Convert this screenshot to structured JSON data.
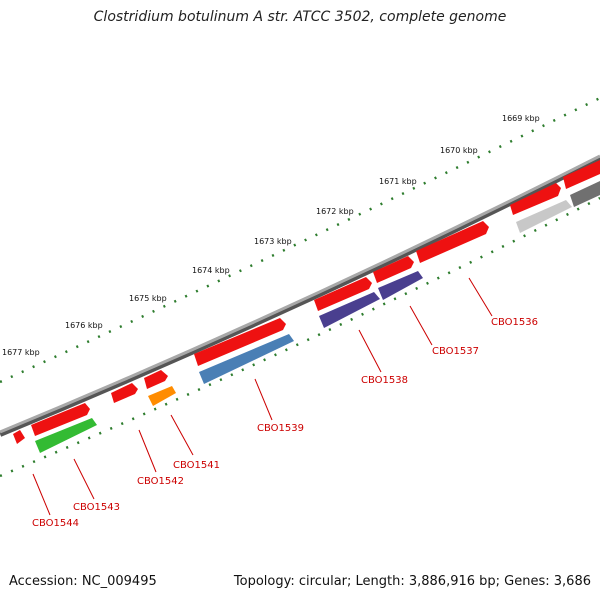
{
  "title": "Clostridium botulinum A str. ATCC 3502, complete genome",
  "accession": "Accession: NC_009495",
  "summary": "Topology: circular; Length: 3,886,916 bp; Genes: 3,686",
  "colors": {
    "backbone": "#8c8c8c",
    "ruler": "#2e7d2e",
    "label": "#cc0000",
    "forward_gene": "#ee1111"
  },
  "ruler_labels": [
    "1669 kbp",
    "1670 kbp",
    "1671 kbp",
    "1672 kbp",
    "1673 kbp",
    "1674 kbp",
    "1675 kbp",
    "1676 kbp",
    "1677 kbp"
  ],
  "genes": [
    {
      "label": "CBO1536",
      "color": "#c8c8c8"
    },
    {
      "label": "CBO1537",
      "color": "#4a3f8f"
    },
    {
      "label": "CBO1538",
      "color": "#4a3f8f"
    },
    {
      "label": "CBO1539",
      "color": "#4a7fb5"
    },
    {
      "label": "CBO1541",
      "color": "#ff8c00"
    },
    {
      "label": "CBO1542",
      "color": "#ee1111"
    },
    {
      "label": "CBO1543",
      "color": "#33bb33"
    },
    {
      "label": "CBO1544",
      "color": "#ee1111"
    }
  ],
  "unlabeled_genes": [
    {
      "color": "#707070"
    }
  ]
}
